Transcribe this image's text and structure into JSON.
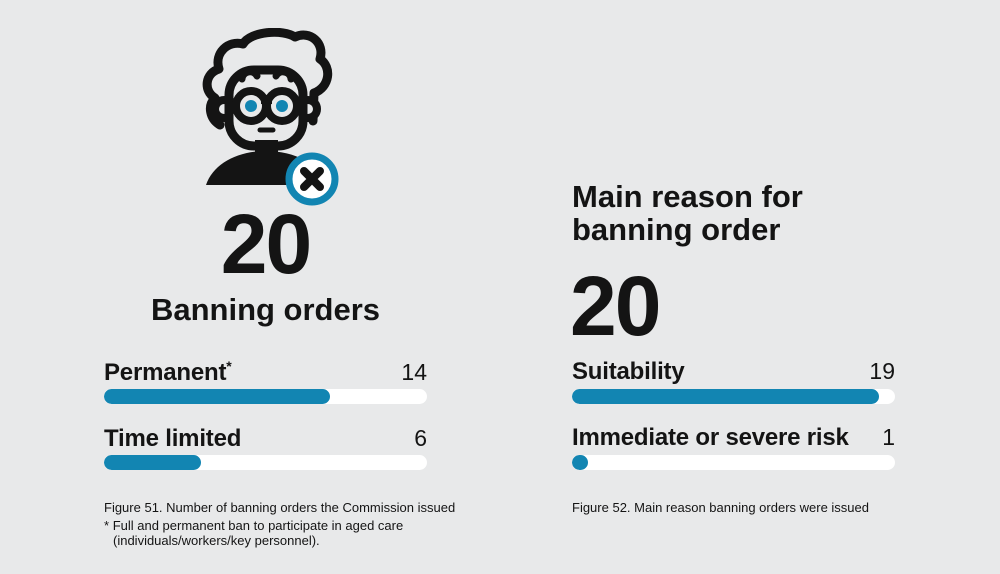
{
  "colors": {
    "background": "#e8e9ea",
    "accent": "#1285b2",
    "track": "#ffffff",
    "text": "#141414"
  },
  "left": {
    "icon_name": "banned-person-icon",
    "total": "20",
    "title": "Banning orders",
    "rows": [
      {
        "label": "Permanent",
        "sup": "*",
        "value": "14",
        "pct": 70
      },
      {
        "label": "Time limited",
        "sup": "",
        "value": "6",
        "pct": 30
      }
    ],
    "caption": "Figure 51. Number of banning orders the Commission issued",
    "footnote": {
      "marker": "*",
      "line1": "Full and permanent ban to participate in aged care",
      "line2": "(individuals/workers/key personnel)."
    }
  },
  "right": {
    "title_line1": "Main reason for",
    "title_line2": "banning order",
    "total": "20",
    "rows": [
      {
        "label": "Suitability",
        "sup": "",
        "value": "19",
        "pct": 95
      },
      {
        "label": "Immediate or severe risk",
        "sup": "",
        "value": "1",
        "pct": 5
      }
    ],
    "caption": "Figure 52. Main reason banning orders were issued"
  },
  "chart_data": [
    {
      "type": "bar",
      "orientation": "horizontal",
      "title": "Banning orders",
      "total": 20,
      "categories": [
        "Permanent*",
        "Time limited"
      ],
      "values": [
        14,
        6
      ],
      "xlim": [
        0,
        20
      ],
      "value_labels_shown": true,
      "legend": false,
      "grid": false,
      "caption": "Figure 51. Number of banning orders the Commission issued",
      "footnote": "* Full and permanent ban to participate in aged care (individuals/workers/key personnel)."
    },
    {
      "type": "bar",
      "orientation": "horizontal",
      "title": "Main reason for banning order",
      "total": 20,
      "categories": [
        "Suitability",
        "Immediate or severe risk"
      ],
      "values": [
        19,
        1
      ],
      "xlim": [
        0,
        20
      ],
      "value_labels_shown": true,
      "legend": false,
      "grid": false,
      "caption": "Figure 52. Main reason banning orders were issued"
    }
  ]
}
